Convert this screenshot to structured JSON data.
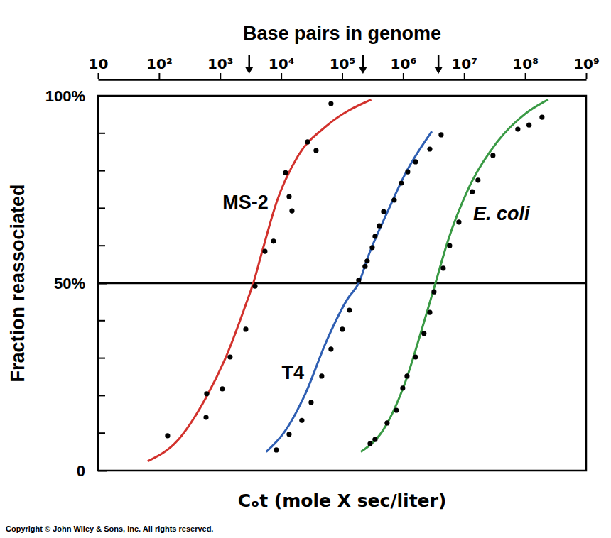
{
  "chart_data": {
    "type": "line",
    "x2label": "Base pairs in genome",
    "xlabel": "Cₒt (mole X sec/liter)",
    "ylabel": "Fraction reassociated",
    "footer": "Copyright © John Wiley & Sons, Inc. All rights reserved.",
    "log": "x",
    "xlim": [
      10,
      1000000000
    ],
    "xticks": [
      10,
      {
        "value": 100,
        "label": "10²"
      },
      {
        "value": 1000,
        "label": "10³"
      },
      {
        "value": 10000,
        "label": "10⁴"
      },
      {
        "value": 100000,
        "label": "10⁵"
      },
      {
        "value": 1000000,
        "label": "10⁶"
      },
      {
        "value": 10000000,
        "label": "10⁷"
      },
      {
        "value": 100000000,
        "label": "10⁸"
      },
      {
        "value": 1000000000,
        "label": "10⁹"
      }
    ],
    "ylim": [
      0,
      100
    ],
    "yticks": [
      0,
      {
        "value": 50,
        "label": "50%"
      },
      {
        "value": 100,
        "label": "100%"
      }
    ],
    "yminor_ticks": [
      10,
      20,
      30,
      40,
      60,
      70,
      80,
      90
    ],
    "reference_lines": [
      50
    ],
    "arrows": [
      3000,
      220000,
      3800000
    ],
    "series": [
      {
        "name": "MS-2",
        "type": "line",
        "color": "#d2322d",
        "line_style": "solid",
        "x": [
          65,
          200,
          590,
          1300,
          2600,
          3500,
          5000,
          8600,
          19000,
          56000,
          300000
        ],
        "values": [
          2.5,
          8,
          19.5,
          31,
          44,
          50,
          59,
          72,
          84,
          92,
          99
        ]
      },
      {
        "name": "T4",
        "type": "line",
        "color": "#2f5fb3",
        "line_style": "solid",
        "x": [
          5700,
          11000,
          25000,
          56000,
          125000,
          187000,
          280000,
          547000,
          1070000,
          2960000
        ],
        "values": [
          5,
          10,
          20.5,
          34.7,
          46,
          50,
          58,
          68.8,
          79,
          90.5
        ]
      },
      {
        "name": "E. coli",
        "type": "line",
        "color": "#3a9a45",
        "line_style": "solid",
        "x": [
          203000,
          479000,
          1070000,
          2090000,
          3390000,
          5350000,
          11900000,
          34900000,
          102000000,
          240000000
        ],
        "values": [
          5,
          11,
          23.3,
          38.4,
          50,
          61,
          75.4,
          87.7,
          95.3,
          99
        ]
      },
      {
        "type": "scatter",
        "color": "#000000",
        "marker": "circle",
        "x": [
          138,
          589,
          604,
          1090,
          1460,
          2640,
          3740,
          5440,
          7510,
          11830,
          13550,
          15080,
          27200,
          37500,
          65800
        ],
        "values": [
          9.3,
          14.2,
          20.5,
          21.8,
          30.3,
          37.7,
          49.2,
          58.5,
          61.2,
          79.5,
          73.1,
          69.3,
          87.7,
          85.4,
          97.9
        ]
      },
      {
        "type": "scatter",
        "color": "#000000",
        "marker": "circle",
        "x": [
          8360,
          13550,
          21900,
          31100,
          46400,
          65800,
          101000,
          132000,
          187000,
          238000,
          258000,
          312000,
          347000,
          407000,
          479000,
          716000,
          936000,
          1190000,
          1600000,
          2740000,
          4200000
        ],
        "values": [
          5.5,
          9.7,
          13.4,
          18.2,
          25.2,
          32.4,
          37.7,
          42.8,
          50.8,
          54.5,
          55.9,
          59.5,
          62.5,
          65.3,
          69.1,
          72.2,
          76.7,
          79.7,
          82.4,
          85.8,
          89.6
        ]
      },
      {
        "type": "scatter",
        "color": "#000000",
        "marker": "circle",
        "x": [
          288000,
          347000,
          547000,
          775000,
          986000,
          1160000,
          1600000,
          2200000,
          2740000,
          3210000,
          4550000,
          5790000,
          8210000,
          13600000,
          16900000,
          29700000,
          75900000,
          116000000,
          189000000
        ],
        "values": [
          7.2,
          8.3,
          12.7,
          16.1,
          22.0,
          25.2,
          30.3,
          36.6,
          42.2,
          47.7,
          54.0,
          60.0,
          66.3,
          74.4,
          77.5,
          84.1,
          91.1,
          92.2,
          94.3
        ]
      }
    ]
  }
}
